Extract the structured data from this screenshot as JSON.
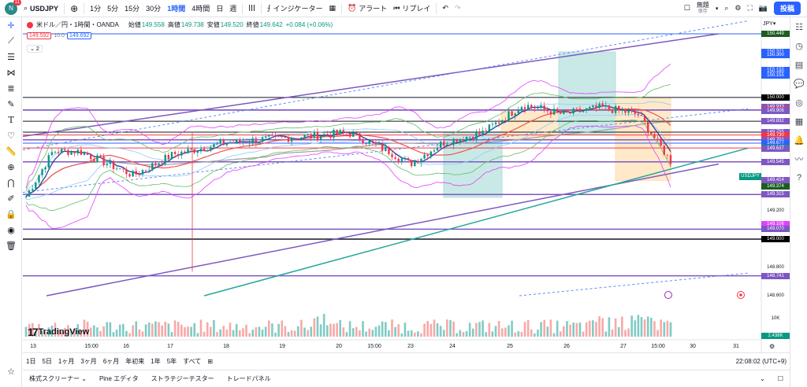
{
  "topbar": {
    "avatar_letter": "N",
    "avatar_badge": "11",
    "symbol": "USDJPY",
    "intervals": [
      "1分",
      "5分",
      "15分",
      "30分",
      "1時間",
      "4時間",
      "日",
      "週"
    ],
    "active_interval": "1時間",
    "indicators_label": "インジケーター",
    "alert_label": "アラート",
    "replay_label": "リプレイ",
    "layout_name": "無題",
    "layout_sub": "保存",
    "post_label": "投稿"
  },
  "legend": {
    "title": "米ドル／円・1時間・OANDA",
    "open_label": "始値",
    "open": "149.558",
    "high_label": "高値",
    "high": "149.738",
    "low_label": "安値",
    "low": "149.520",
    "close_label": "終値",
    "close": "149.642",
    "change": "+0.084 (+0.06%)",
    "bid": "149.592",
    "spread": "10.0",
    "ask": "149.692",
    "collapse": "2"
  },
  "axis": {
    "currency": "JPY",
    "price_labels": [
      {
        "t": "150.449",
        "c": "#1b5e20"
      },
      {
        "t": "150.321",
        "c": "#2962ff"
      },
      {
        "t": "150.300",
        "c": "#2962ff"
      },
      {
        "t": "150.192",
        "c": "#2962ff"
      },
      {
        "t": "150.180",
        "c": "#2962ff"
      },
      {
        "t": "150.155",
        "c": "#2962ff"
      },
      {
        "t": "150.000",
        "c": "#000000"
      },
      {
        "t": "149.933",
        "c": "#7e57c2"
      },
      {
        "t": "149.911",
        "c": "#f23645"
      },
      {
        "t": "149.911",
        "c": "#00c853"
      },
      {
        "t": "149.911",
        "c": "#7e57c2"
      },
      {
        "t": "149.911",
        "c": "#f23645"
      },
      {
        "t": "149.906",
        "c": "#7e57c2"
      },
      {
        "t": "149.832",
        "c": "#7e57c2"
      },
      {
        "t": "149.755",
        "c": "#7e57c2"
      },
      {
        "t": "149.735",
        "c": "#f23645"
      },
      {
        "t": "149.730",
        "c": "#f23645"
      },
      {
        "t": "149.701",
        "c": "#7e57c2"
      },
      {
        "t": "149.677",
        "c": "#2962ff"
      },
      {
        "t": "149.643",
        "c": "#7e57c2"
      },
      {
        "t": "149.642",
        "c": "#089981"
      },
      {
        "t": "149.637",
        "c": "#7e57c2"
      },
      {
        "t": "149.545",
        "c": "#7e57c2"
      },
      {
        "t": "149.414",
        "c": "#7e57c2"
      },
      {
        "t": "149.374",
        "c": "#1b5e20"
      },
      {
        "t": "149.315",
        "c": "#7e57c2"
      },
      {
        "t": "149.200",
        "c": ""
      },
      {
        "t": "149.106",
        "c": "#e040fb"
      },
      {
        "t": "149.070",
        "c": "#7e57c2"
      },
      {
        "t": "149.000",
        "c": "#000000"
      },
      {
        "t": "148.800",
        "c": ""
      },
      {
        "t": "148.741",
        "c": "#7e57c2"
      },
      {
        "t": "148.600",
        "c": ""
      }
    ],
    "symbol_tag": "USDJPY",
    "volume_label": "10K",
    "volume_value": "2.438K"
  },
  "time_axis": [
    "13",
    "15:00",
    "16",
    "17",
    "18",
    "19",
    "20",
    "15:00",
    "23",
    "24",
    "25",
    "26",
    "27",
    "15:00",
    "30",
    "31"
  ],
  "bottombar": {
    "ranges": [
      "1日",
      "5日",
      "1ヶ月",
      "3ヶ月",
      "6ヶ月",
      "年初来",
      "1年",
      "5年",
      "すべて"
    ],
    "clock": "22:08:02 (UTC+9)"
  },
  "footbar": {
    "tabs": [
      "株式スクリーナー",
      "Pine エディタ",
      "ストラテジーテスター",
      "トレードパネル"
    ]
  },
  "logo_text": "TradingView",
  "colors": {
    "up": "#089981",
    "down": "#f23645",
    "accent": "#2962ff"
  }
}
